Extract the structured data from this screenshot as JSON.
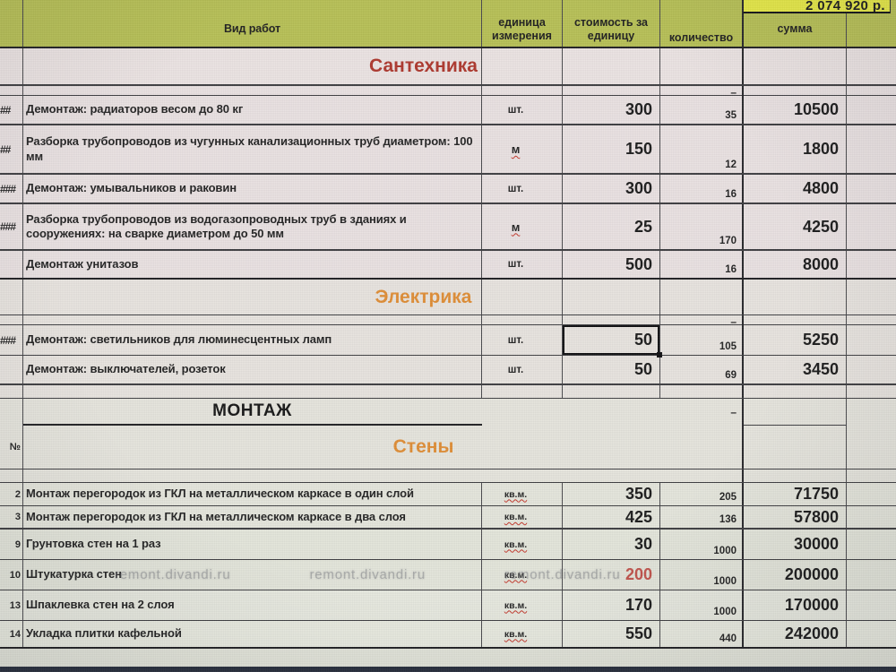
{
  "total_cell": "2 074 920 р.",
  "header": {
    "work": "Вид работ",
    "unit": "единица измерения",
    "price": "стоимость за единицу",
    "qty": "количество",
    "sum": "сумма"
  },
  "sections": {
    "plumbing": "Сантехника",
    "electrical": "Электрика",
    "installation": "МОНТАЖ",
    "walls": "Стены"
  },
  "labels": {
    "row_number_header": "№",
    "dash": "–",
    "overflow_marks_2": "##",
    "overflow_marks_3": "###"
  },
  "watermark": "remont.divandi.ru",
  "colors": {
    "header_olive": "#b6bf53",
    "total_yellow": "#e6e944",
    "section_title_red": "#ad352a",
    "section_title_orange": "#df8c33",
    "price_red": "#c05048",
    "bottom_bar": "#222938"
  },
  "rows": {
    "r1": {
      "num": "##",
      "text": "Демонтаж: радиаторов весом до 80 кг",
      "unit": "шт.",
      "price": "300",
      "qty": "35",
      "sum": "10500"
    },
    "r2": {
      "num": "##",
      "text": "Разборка трубопроводов из чугунных канализационных труб диаметром: 100 мм",
      "unit": "м",
      "price": "150",
      "qty": "12",
      "sum": "1800"
    },
    "r3": {
      "num": "###",
      "text": "Демонтаж: умывальников и раковин",
      "unit": "шт.",
      "price": "300",
      "qty": "16",
      "sum": "4800"
    },
    "r4": {
      "num": "###",
      "text": "Разборка трубопроводов из водогазопроводных труб в зданиях и сооружениях: на сварке диаметром до 50 мм",
      "unit": "м",
      "price": "25",
      "qty": "170",
      "sum": "4250"
    },
    "r5": {
      "num": "",
      "text": "Демонтаж унитазов",
      "unit": "шт.",
      "price": "500",
      "qty": "16",
      "sum": "8000"
    },
    "e1": {
      "num": "###",
      "text": "Демонтаж: светильников для люминесцентных ламп",
      "unit": "шт.",
      "price": "50",
      "qty": "105",
      "sum": "5250"
    },
    "e2": {
      "num": "",
      "text": "Демонтаж: выключателей, розеток",
      "unit": "шт.",
      "price": "50",
      "qty": "69",
      "sum": "3450"
    },
    "w2": {
      "num": "2",
      "t1": "Монтаж перегородок из ГКЛ на металлическом каркасе в ",
      "t2": "один",
      "t3": " слой",
      "unit": "кв.м.",
      "price": "350",
      "qty": "205",
      "sum": "71750"
    },
    "w3": {
      "num": "3",
      "t1": "Монтаж перегородок из ГКЛ на металлическом каркасе в ",
      "t2": "два",
      "t3": " слоя",
      "unit": "кв.м.",
      "price": "425",
      "qty": "136",
      "sum": "57800"
    },
    "w9": {
      "num": "9",
      "text": "Грунтовка стен на 1 раз",
      "unit": "кв.м.",
      "price": "30",
      "qty": "1000",
      "sum": "30000"
    },
    "w10": {
      "num": "10",
      "text": "Штукатурка стен",
      "unit": "кв.м.",
      "price": "200",
      "qty": "1000",
      "sum": "200000"
    },
    "w13": {
      "num": "13",
      "text": "Шпаклевка стен на 2 слоя",
      "unit": "кв.м.",
      "price": "170",
      "qty": "1000",
      "sum": "170000"
    },
    "w14": {
      "num": "14",
      "text": "Укладка плитки кафельной",
      "unit": "кв.м.",
      "price": "550",
      "qty": "440",
      "sum": "242000"
    }
  }
}
